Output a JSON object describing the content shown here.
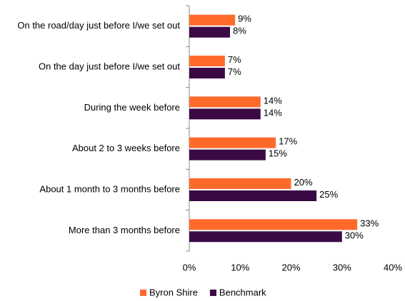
{
  "chart_data": {
    "type": "hbar",
    "categories": [
      "On the road/day just before I/we set out",
      "On the day just before I/we set out",
      "During the week before",
      "About 2 to 3 weeks before",
      "About 1 month to 3 months before",
      "More than 3 months before"
    ],
    "series": [
      {
        "name": "Byron Shire",
        "color": "#ff6a2b",
        "values": [
          9,
          7,
          14,
          17,
          20,
          33
        ],
        "value_labels": [
          "9%",
          "7%",
          "14%",
          "17%",
          "20%",
          "33%"
        ]
      },
      {
        "name": "Benchmark",
        "color": "#3b0a45",
        "values": [
          8,
          7,
          14,
          15,
          25,
          30
        ],
        "value_labels": [
          "8%",
          "7%",
          "14%",
          "15%",
          "25%",
          "30%"
        ]
      }
    ],
    "xlim": [
      0,
      40
    ],
    "xticks": [
      {
        "value": 0,
        "label": "0%"
      },
      {
        "value": 10,
        "label": "10%"
      },
      {
        "value": 20,
        "label": "20%"
      },
      {
        "value": 30,
        "label": "30%"
      },
      {
        "value": 40,
        "label": "40%"
      }
    ],
    "grid": false,
    "legend": "bottom"
  }
}
